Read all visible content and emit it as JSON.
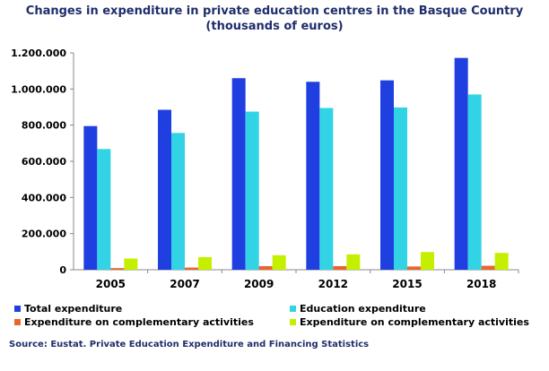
{
  "chart_data": {
    "type": "bar",
    "title": "Changes in expenditure in private education centres in the Basque Country",
    "subtitle": "(thousands of euros)",
    "categories": [
      "2005",
      "2007",
      "2009",
      "2012",
      "2015",
      "2018"
    ],
    "ylim": [
      0,
      1200000
    ],
    "yticks": [
      0,
      200000,
      400000,
      600000,
      800000,
      1000000,
      1200000
    ],
    "ytick_labels": [
      "0",
      "200.000",
      "400.000",
      "600.000",
      "800.000",
      "1.000.000",
      "1.200.000"
    ],
    "grid": false,
    "legend_position": "bottom",
    "series": [
      {
        "name": "Total expenditure",
        "color": "#1f3fe0",
        "values": [
          795000,
          885000,
          1060000,
          1040000,
          1048000,
          1172000
        ]
      },
      {
        "name": "Education expenditure",
        "color": "#33d3e6",
        "values": [
          668000,
          757000,
          875000,
          895000,
          898000,
          970000
        ]
      },
      {
        "name": "Expenditure on complementary activities",
        "color": "#e8662a",
        "values": [
          9000,
          12000,
          20000,
          20000,
          18000,
          22000
        ]
      },
      {
        "name": "Expenditure on complementary activities",
        "color": "#c4f000",
        "values": [
          62000,
          70000,
          80000,
          85000,
          98000,
          93000
        ]
      }
    ]
  },
  "source": "Source: Eustat. Private Education Expenditure and Financing Statistics"
}
